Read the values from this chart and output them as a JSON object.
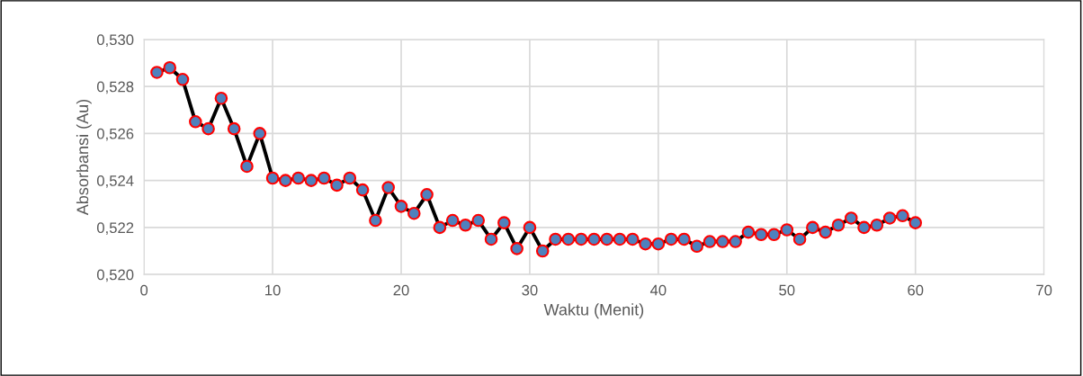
{
  "chart_data": {
    "type": "line",
    "xlabel": "Waktu (Menit)",
    "ylabel": "Absorbansi (Au)",
    "x": [
      1,
      2,
      3,
      4,
      5,
      6,
      7,
      8,
      9,
      10,
      11,
      12,
      13,
      14,
      15,
      16,
      17,
      18,
      19,
      20,
      21,
      22,
      23,
      24,
      25,
      26,
      27,
      28,
      29,
      30,
      31,
      32,
      33,
      34,
      35,
      36,
      37,
      38,
      39,
      40,
      41,
      42,
      43,
      44,
      45,
      46,
      47,
      48,
      49,
      50,
      51,
      52,
      53,
      54,
      55,
      56,
      57,
      58,
      59,
      60
    ],
    "series": [
      {
        "color": "#000000",
        "values": [
          0.5286,
          0.5288,
          0.5283,
          0.5265,
          0.5262,
          0.5275,
          0.5262,
          0.5246,
          0.526,
          0.5241,
          0.524,
          0.5241,
          0.524,
          0.5241,
          0.5238,
          0.5241,
          0.5236,
          0.5223,
          0.5237,
          0.5229,
          0.5226,
          0.5234,
          0.522,
          0.5223,
          0.5221,
          0.5223,
          0.5215,
          0.5222,
          0.5211,
          0.522,
          0.521,
          0.5215,
          0.5215,
          0.5215,
          0.5215,
          0.5215,
          0.5215,
          0.5215,
          0.5213,
          0.5213,
          0.5215,
          0.5215,
          0.5212,
          0.5214,
          0.5214,
          0.5214,
          0.5218,
          0.5217,
          0.5217,
          0.5219,
          0.5215,
          0.522,
          0.5218,
          0.5221,
          0.5224,
          0.522,
          0.5221,
          0.5224,
          0.5225,
          0.5222
        ]
      }
    ],
    "marker": "circle",
    "line_style": "solid",
    "grid": true,
    "legend": false,
    "xlim": [
      0,
      70
    ],
    "xticks": [
      0,
      10,
      20,
      30,
      40,
      50,
      60,
      70
    ],
    "ylim": [
      0.52,
      0.53
    ],
    "yticks": [
      {
        "value": 0.52,
        "label": "0,520"
      },
      {
        "value": 0.522,
        "label": "0,522"
      },
      {
        "value": 0.524,
        "label": "0,524"
      },
      {
        "value": 0.526,
        "label": "0,526"
      },
      {
        "value": 0.528,
        "label": "0,528"
      },
      {
        "value": 0.53,
        "label": "0,530"
      }
    ]
  }
}
